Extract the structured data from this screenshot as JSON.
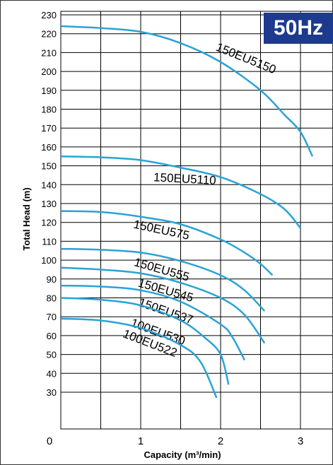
{
  "badge": "50Hz",
  "chart_data": {
    "type": "line",
    "xlabel": "Capacity (m³/min)",
    "ylabel": "Total Head (m)",
    "xlim": [
      0,
      3.4
    ],
    "ylim": [
      0,
      235
    ],
    "x_ticks": [
      "0",
      "1",
      "2",
      "3"
    ],
    "y_ticks": [
      30,
      40,
      50,
      60,
      70,
      80,
      90,
      100,
      110,
      120,
      130,
      140,
      150,
      160,
      170,
      180,
      190,
      200,
      210,
      220,
      230
    ],
    "grid": true,
    "line_color": "#29a3d6",
    "series": [
      {
        "name": "150EU5150",
        "x": [
          0,
          0.5,
          1.0,
          1.5,
          2.0,
          2.5,
          2.8,
          3.0,
          3.15
        ],
        "y": [
          224,
          223,
          221,
          215,
          205,
          190,
          177,
          168,
          155
        ]
      },
      {
        "name": "150EU5110",
        "x": [
          0,
          0.5,
          1.0,
          1.5,
          2.0,
          2.5,
          2.8,
          3.0
        ],
        "y": [
          155,
          154.5,
          153,
          149,
          144,
          135,
          127,
          117
        ]
      },
      {
        "name": "150EU575",
        "x": [
          0,
          0.5,
          1.0,
          1.5,
          2.0,
          2.3,
          2.5,
          2.65
        ],
        "y": [
          126,
          125.5,
          123,
          119,
          111,
          104,
          98,
          92
        ]
      },
      {
        "name": "150EU555",
        "x": [
          0,
          0.5,
          1.0,
          1.5,
          2.0,
          2.3,
          2.55
        ],
        "y": [
          106,
          105.5,
          104,
          99.5,
          92,
          84,
          73
        ]
      },
      {
        "name": "150EU545",
        "x": [
          0,
          0.5,
          1.0,
          1.5,
          2.0,
          2.3,
          2.55
        ],
        "y": [
          96,
          95,
          93,
          88,
          80,
          71,
          56
        ]
      },
      {
        "name": "150EU537",
        "x": [
          0,
          0.5,
          1.0,
          1.5,
          2.0,
          2.15,
          2.3
        ],
        "y": [
          86.5,
          86,
          84,
          78,
          66,
          59,
          47
        ]
      },
      {
        "name": "100EU530",
        "x": [
          0,
          0.5,
          1.0,
          1.5,
          1.8,
          2.0,
          2.1
        ],
        "y": [
          80,
          79,
          76,
          68,
          59,
          50,
          34
        ]
      },
      {
        "name": "100EU522",
        "x": [
          0,
          0.5,
          1.0,
          1.5,
          1.75,
          1.95
        ],
        "y": [
          69,
          68,
          64,
          55,
          46,
          27
        ]
      }
    ]
  }
}
